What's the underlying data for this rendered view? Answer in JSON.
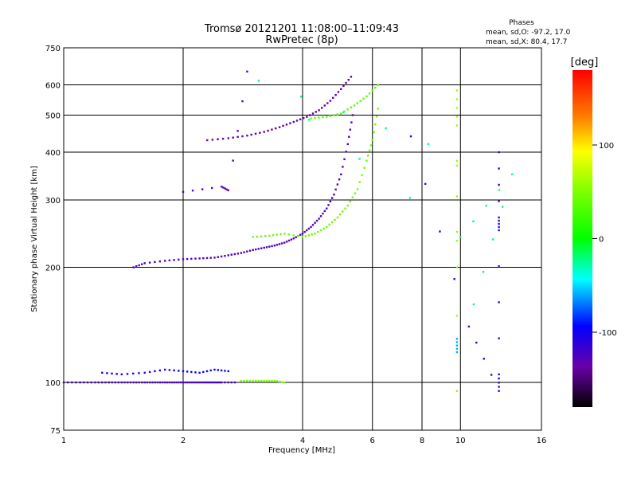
{
  "chart_data": {
    "type": "scatter",
    "title": "Tromsø 20121201 11:08:00–11:09:43",
    "subtitle": "RwPretec (8p)",
    "xlabel": "Frequency [MHz]",
    "ylabel": "Stationary phase Virtual Height [km]",
    "x_scale": "log",
    "y_scale": "log",
    "xlim": [
      1,
      16
    ],
    "ylim": [
      75,
      750
    ],
    "x_ticks": [
      1,
      2,
      4,
      6,
      8,
      10,
      16
    ],
    "y_ticks": [
      75,
      100,
      200,
      300,
      400,
      500,
      600,
      750
    ],
    "grid": true,
    "phase_box": {
      "title": "Phases",
      "line_o": "mean, sd,O: -97.2, 17.0",
      "line_x": "mean, sd,X:  80.4, 17.7"
    },
    "colorbar": {
      "label": "[deg]",
      "range": [
        -180,
        180
      ],
      "ticks": [
        100,
        0,
        -100
      ],
      "colors": [
        "#ff0000",
        "#ffff00",
        "#00ff00",
        "#00ffff",
        "#0000ff",
        "#6a00a8",
        "#000000"
      ]
    },
    "series": [
      {
        "name": "O",
        "phase_mean": -97.2,
        "phase_sd": 17.0
      },
      {
        "name": "X",
        "phase_mean": 80.4,
        "phase_sd": 17.7
      }
    ],
    "traces": [
      {
        "phase": -100,
        "points": [
          [
            1.0,
            100
          ],
          [
            1.1,
            100
          ],
          [
            1.2,
            100
          ],
          [
            1.3,
            100
          ],
          [
            1.4,
            100
          ],
          [
            1.5,
            100
          ],
          [
            1.6,
            100
          ],
          [
            1.7,
            100
          ],
          [
            1.8,
            100
          ],
          [
            1.9,
            100
          ],
          [
            2.0,
            100
          ],
          [
            2.1,
            100
          ],
          [
            2.2,
            100
          ],
          [
            2.3,
            100
          ],
          [
            2.4,
            100
          ],
          [
            2.5,
            100
          ],
          [
            2.7,
            100
          ]
        ]
      },
      {
        "phase": -70,
        "points": [
          [
            1.25,
            106
          ],
          [
            1.4,
            105
          ],
          [
            1.6,
            106
          ],
          [
            1.8,
            108
          ],
          [
            2.0,
            107
          ],
          [
            2.2,
            106
          ],
          [
            2.4,
            108
          ],
          [
            2.6,
            107
          ]
        ]
      },
      {
        "phase": 90,
        "points": [
          [
            2.8,
            101
          ],
          [
            3.0,
            101
          ],
          [
            3.2,
            101
          ],
          [
            3.4,
            101
          ],
          [
            3.6,
            100
          ]
        ]
      },
      {
        "phase": -105,
        "points": [
          [
            1.5,
            200
          ],
          [
            1.6,
            205
          ],
          [
            1.8,
            208
          ],
          [
            2.0,
            210
          ],
          [
            2.2,
            211
          ],
          [
            2.4,
            212
          ],
          [
            2.6,
            215
          ],
          [
            2.8,
            218
          ],
          [
            3.0,
            222
          ],
          [
            3.2,
            225
          ],
          [
            3.4,
            228
          ],
          [
            3.6,
            232
          ],
          [
            3.8,
            238
          ],
          [
            4.0,
            245
          ],
          [
            4.2,
            255
          ],
          [
            4.4,
            268
          ],
          [
            4.6,
            285
          ],
          [
            4.8,
            310
          ],
          [
            5.0,
            350
          ],
          [
            5.2,
            420
          ],
          [
            5.35,
            500
          ]
        ]
      },
      {
        "phase": -115,
        "points": [
          [
            2.3,
            430
          ],
          [
            2.6,
            435
          ],
          [
            2.9,
            442
          ],
          [
            3.2,
            452
          ],
          [
            3.5,
            465
          ],
          [
            3.8,
            480
          ],
          [
            4.1,
            495
          ],
          [
            4.4,
            515
          ],
          [
            4.7,
            545
          ],
          [
            5.0,
            585
          ],
          [
            5.3,
            630
          ]
        ]
      },
      {
        "phase": -110,
        "points": [
          [
            2.0,
            315
          ],
          [
            2.5,
            325
          ],
          [
            2.6,
            318
          ],
          [
            2.9,
            650
          ]
        ]
      },
      {
        "phase": 85,
        "points": [
          [
            3.0,
            240
          ],
          [
            3.3,
            242
          ],
          [
            3.6,
            245
          ],
          [
            4.0,
            240
          ],
          [
            4.3,
            245
          ],
          [
            4.6,
            255
          ],
          [
            4.9,
            270
          ],
          [
            5.2,
            290
          ],
          [
            5.5,
            320
          ],
          [
            5.8,
            380
          ],
          [
            6.0,
            430
          ],
          [
            6.2,
            520
          ]
        ]
      },
      {
        "phase": 80,
        "points": [
          [
            4.2,
            490
          ],
          [
            4.6,
            495
          ],
          [
            5.0,
            505
          ],
          [
            5.4,
            530
          ],
          [
            5.8,
            560
          ],
          [
            6.2,
            600
          ]
        ]
      },
      {
        "phase": 95,
        "points": [
          [
            9.8,
            95
          ],
          [
            9.8,
            580
          ],
          [
            9.8,
            470
          ],
          [
            9.8,
            200
          ]
        ]
      },
      {
        "phase": -20,
        "points": [
          [
            9.8,
            130
          ],
          [
            9.8,
            120
          ]
        ]
      },
      {
        "phase": -90,
        "points": [
          [
            12.5,
            400
          ],
          [
            12.5,
            270
          ],
          [
            12.5,
            250
          ],
          [
            12.5,
            105
          ],
          [
            12.5,
            95
          ],
          [
            10.5,
            140
          ],
          [
            7.5,
            440
          ]
        ]
      },
      {
        "phase": 30,
        "points": [
          [
            10.8,
            160
          ],
          [
            13.5,
            350
          ],
          [
            10.0,
            240
          ],
          [
            3.1,
            615
          ],
          [
            8.3,
            420
          ]
        ]
      }
    ]
  }
}
